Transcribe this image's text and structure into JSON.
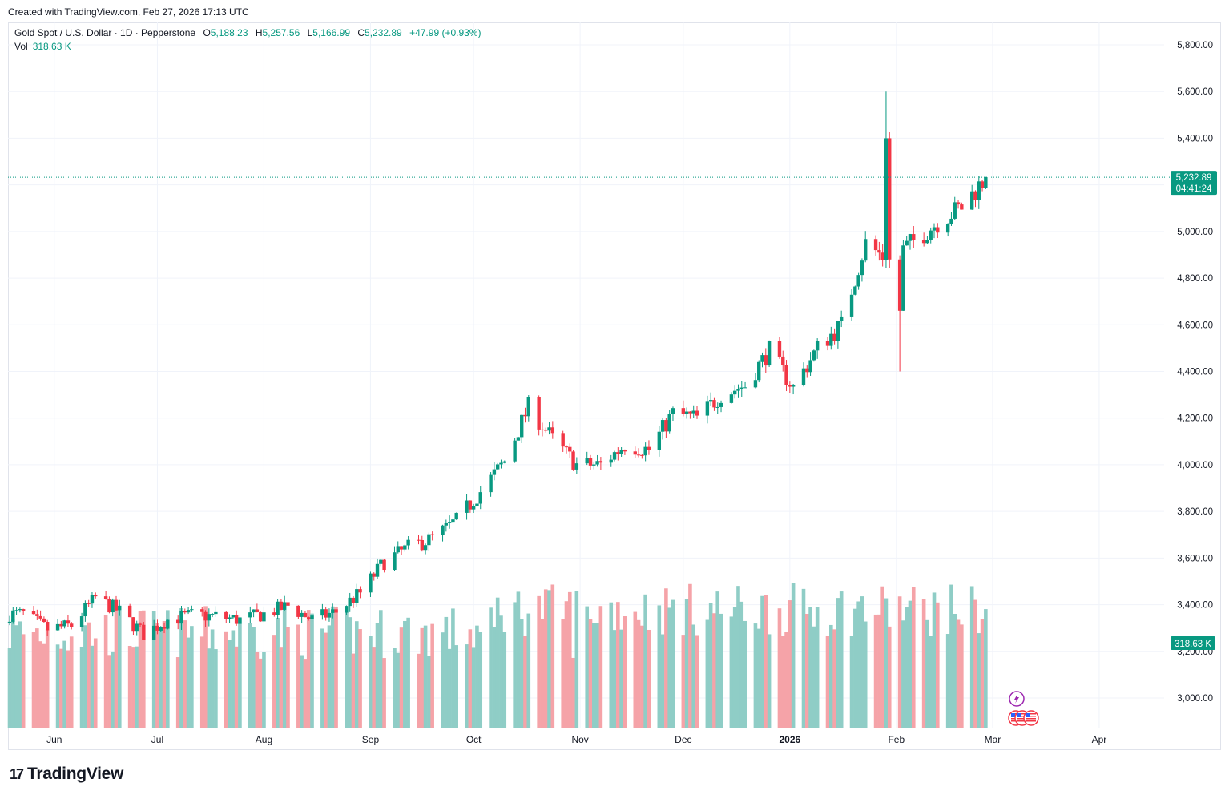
{
  "credit": "Created with TradingView.com, Feb 27, 2026 17:13 UTC",
  "legend": {
    "symbol": "Gold Spot / U.S. Dollar · 1D · Pepperstone",
    "open_label": "O",
    "open": "5,188.23",
    "high_label": "H",
    "high": "5,257.56",
    "low_label": "L",
    "low": "5,166.99",
    "close_label": "C",
    "close": "5,232.89",
    "change": "+47.99 (+0.93%)",
    "vol_label": "Vol",
    "vol": "318.63 K"
  },
  "branding": {
    "mark": "17",
    "name": "TradingView"
  },
  "chart_data": {
    "type": "candlestick",
    "title": "Gold Spot / U.S. Dollar · 1D · Pepperstone",
    "y_axis": {
      "ticks": [
        "5,800.00",
        "5,600.00",
        "5,400.00",
        "5,200.00",
        "5,000.00",
        "4,800.00",
        "4,600.00",
        "4,400.00",
        "4,200.00",
        "4,000.00",
        "3,800.00",
        "3,600.00",
        "3,400.00",
        "3,200.00",
        "3,000.00"
      ],
      "range": [
        2870,
        5920
      ]
    },
    "x_axis": {
      "ticks": [
        "Jun",
        "Jul",
        "Aug",
        "Sep",
        "Oct",
        "Nov",
        "Dec",
        "2026",
        "Feb",
        "Mar",
        "Apr"
      ]
    },
    "last_price": {
      "price": 5232.89,
      "label": "5,232.89",
      "countdown": "04:41:24"
    },
    "volume_label": "318.63 K",
    "colors": {
      "up": "#089981",
      "down": "#f23645",
      "vol_up": "#8fcdc6",
      "vol_down": "#f5a3a8",
      "grid": "#f0f3fa"
    },
    "events": [
      "lightning-icon",
      "us-flag-icon",
      "us-flag-icon"
    ],
    "weekly_closes": [
      {
        "week": "2025-05-19",
        "close": 3360
      },
      {
        "week": "2025-05-26",
        "close": 3295
      },
      {
        "week": "2025-06-02",
        "close": 3310
      },
      {
        "week": "2025-06-09",
        "close": 3430
      },
      {
        "week": "2025-06-16",
        "close": 3370
      },
      {
        "week": "2025-06-23",
        "close": 3275
      },
      {
        "week": "2025-06-30",
        "close": 3335
      },
      {
        "week": "2025-07-07",
        "close": 3355
      },
      {
        "week": "2025-07-14",
        "close": 3350
      },
      {
        "week": "2025-07-21",
        "close": 3335
      },
      {
        "week": "2025-07-28",
        "close": 3360
      },
      {
        "week": "2025-08-04",
        "close": 3395
      },
      {
        "week": "2025-08-11",
        "close": 3335
      },
      {
        "week": "2025-08-18",
        "close": 3370
      },
      {
        "week": "2025-08-25",
        "close": 3450
      },
      {
        "week": "2025-09-01",
        "close": 3585
      },
      {
        "week": "2025-09-08",
        "close": 3645
      },
      {
        "week": "2025-09-15",
        "close": 3685
      },
      {
        "week": "2025-09-22",
        "close": 3760
      },
      {
        "week": "2025-09-29",
        "close": 3885
      },
      {
        "week": "2025-10-06",
        "close": 4015
      },
      {
        "week": "2025-10-13",
        "close": 4250
      },
      {
        "week": "2025-10-20",
        "close": 4110
      },
      {
        "week": "2025-10-27",
        "close": 4000
      },
      {
        "week": "2025-11-03",
        "close": 4000
      },
      {
        "week": "2025-11-10",
        "close": 4085
      },
      {
        "week": "2025-11-17",
        "close": 4065
      },
      {
        "week": "2025-11-24",
        "close": 4220
      },
      {
        "week": "2025-12-01",
        "close": 4200
      },
      {
        "week": "2025-12-08",
        "close": 4300
      },
      {
        "week": "2025-12-15",
        "close": 4340
      },
      {
        "week": "2025-12-22",
        "close": 4490
      },
      {
        "week": "2025-12-29",
        "close": 4330
      },
      {
        "week": "2026-01-05",
        "close": 4500
      },
      {
        "week": "2026-01-12",
        "close": 4600
      },
      {
        "week": "2026-01-19",
        "close": 4950
      },
      {
        "week": "2026-01-26",
        "close": 4870
      },
      {
        "week": "2026-02-02",
        "close": 4960
      },
      {
        "week": "2026-02-09",
        "close": 5040
      },
      {
        "week": "2026-02-16",
        "close": 5105
      },
      {
        "week": "2026-02-23",
        "close": 5232.89
      }
    ]
  }
}
